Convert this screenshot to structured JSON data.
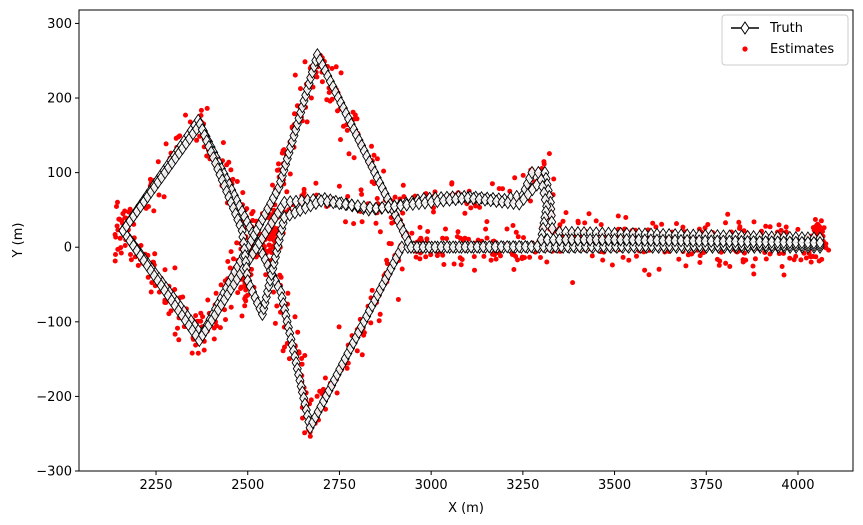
{
  "chart_data": {
    "type": "scatter",
    "xlabel": "X (m)",
    "ylabel": "Y (m)",
    "xlim": [
      2040,
      4150
    ],
    "ylim": [
      -300,
      318
    ],
    "xticks": [
      2250,
      2500,
      2750,
      3000,
      3250,
      3500,
      3750,
      4000
    ],
    "yticks": [
      -300,
      -200,
      -100,
      0,
      100,
      200,
      300
    ],
    "grid": false,
    "legend_position": "top-right",
    "series": [
      {
        "name": "Truth",
        "style": "line-diamond",
        "color": "#000000",
        "paths": [
          [
            [
              2160,
              22
            ],
            [
              2365,
              170
            ],
            [
              2590,
              -60
            ],
            [
              2670,
              -242
            ],
            [
              2920,
              0
            ],
            [
              4060,
              0
            ]
          ],
          [
            [
              2160,
              22
            ],
            [
              2375,
              -118
            ],
            [
              2585,
              80
            ],
            [
              2690,
              258
            ],
            [
              2945,
              0
            ],
            [
              4060,
              3
            ]
          ],
          [
            [
              2160,
              22
            ],
            [
              2368,
              -125
            ],
            [
              2600,
              60
            ],
            [
              2710,
              65
            ],
            [
              2830,
              50
            ],
            [
              2900,
              55
            ],
            [
              2980,
              65
            ],
            [
              3090,
              68
            ],
            [
              3200,
              64
            ],
            [
              3250,
              70
            ],
            [
              3275,
              100
            ],
            [
              3310,
              100
            ],
            [
              3325,
              60
            ],
            [
              3330,
              25
            ],
            [
              3350,
              20
            ],
            [
              3550,
              18
            ],
            [
              4060,
              12
            ]
          ],
          [
            [
              2160,
              22
            ],
            [
              2370,
              165
            ],
            [
              2485,
              22
            ],
            [
              2500,
              -45
            ],
            [
              2540,
              -90
            ],
            [
              2600,
              40
            ],
            [
              2700,
              62
            ],
            [
              2850,
              52
            ],
            [
              3100,
              66
            ],
            [
              3240,
              58
            ],
            [
              3300,
              90
            ],
            [
              3315,
              55
            ],
            [
              3300,
              10
            ],
            [
              3500,
              10
            ],
            [
              4060,
              6
            ]
          ]
        ]
      },
      {
        "name": "Estimates",
        "style": "points",
        "color": "#ff0000",
        "noise": 14,
        "paths": [
          [
            [
              2160,
              22
            ],
            [
              2365,
              170
            ],
            [
              2590,
              -60
            ],
            [
              2670,
              -242
            ],
            [
              2920,
              0
            ],
            [
              4060,
              0
            ]
          ],
          [
            [
              2160,
              22
            ],
            [
              2375,
              -118
            ],
            [
              2585,
              80
            ],
            [
              2690,
              258
            ],
            [
              2945,
              0
            ],
            [
              4060,
              3
            ]
          ],
          [
            [
              2160,
              22
            ],
            [
              2368,
              -125
            ],
            [
              2600,
              60
            ],
            [
              2710,
              65
            ],
            [
              2830,
              50
            ],
            [
              2900,
              55
            ],
            [
              2980,
              65
            ],
            [
              3090,
              68
            ],
            [
              3200,
              64
            ],
            [
              3250,
              70
            ],
            [
              3275,
              100
            ],
            [
              3310,
              100
            ],
            [
              3325,
              60
            ],
            [
              3330,
              25
            ],
            [
              3350,
              20
            ],
            [
              3550,
              18
            ],
            [
              4060,
              12
            ]
          ]
        ],
        "clusters": [
          {
            "x": 2490,
            "y": -35,
            "count": 60,
            "spread": 14
          },
          {
            "x": 2570,
            "y": 18,
            "count": 45,
            "spread": 12
          },
          {
            "x": 4060,
            "y": 10,
            "count": 40,
            "spread": 10
          },
          {
            "x": 2150,
            "y": 20,
            "count": 18,
            "spread": 14
          }
        ]
      }
    ]
  }
}
